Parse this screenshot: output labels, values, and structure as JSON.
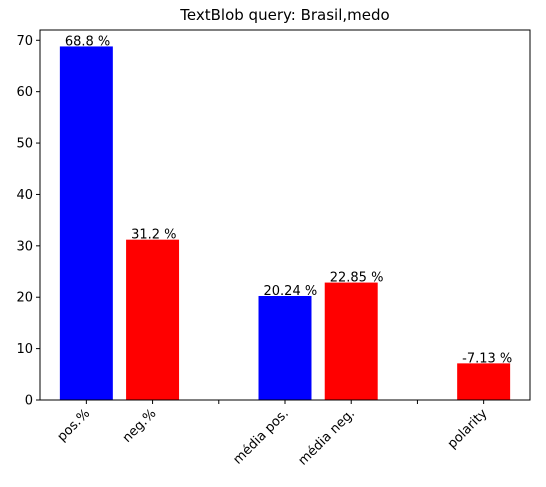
{
  "chart_data": {
    "type": "bar",
    "title": "TextBlob query: Brasil,medo",
    "xlabel": "",
    "ylabel": "",
    "ylim": [
      0,
      72
    ],
    "yticks": [
      0,
      10,
      20,
      30,
      40,
      50,
      60,
      70
    ],
    "grid": false,
    "bars": [
      {
        "label": "pos.%",
        "value": 68.8,
        "display_label": "68.8 %",
        "color": "#0000ff"
      },
      {
        "label": "neg.%",
        "value": 31.2,
        "display_label": "31.2 %",
        "color": "#ff0000"
      },
      {
        "label": "média pos.",
        "value": 20.24,
        "display_label": "20.24 %",
        "color": "#0000ff"
      },
      {
        "label": "média neg.",
        "value": 22.85,
        "display_label": "22.85 %",
        "color": "#ff0000"
      },
      {
        "label": "polarity",
        "value": 7.13,
        "display_label": "-7.13 %",
        "color": "#ff0000"
      }
    ],
    "xtick_labels": [
      "pos.%",
      "neg.%",
      "",
      "média pos.",
      "média neg.",
      "",
      "polarity"
    ]
  }
}
